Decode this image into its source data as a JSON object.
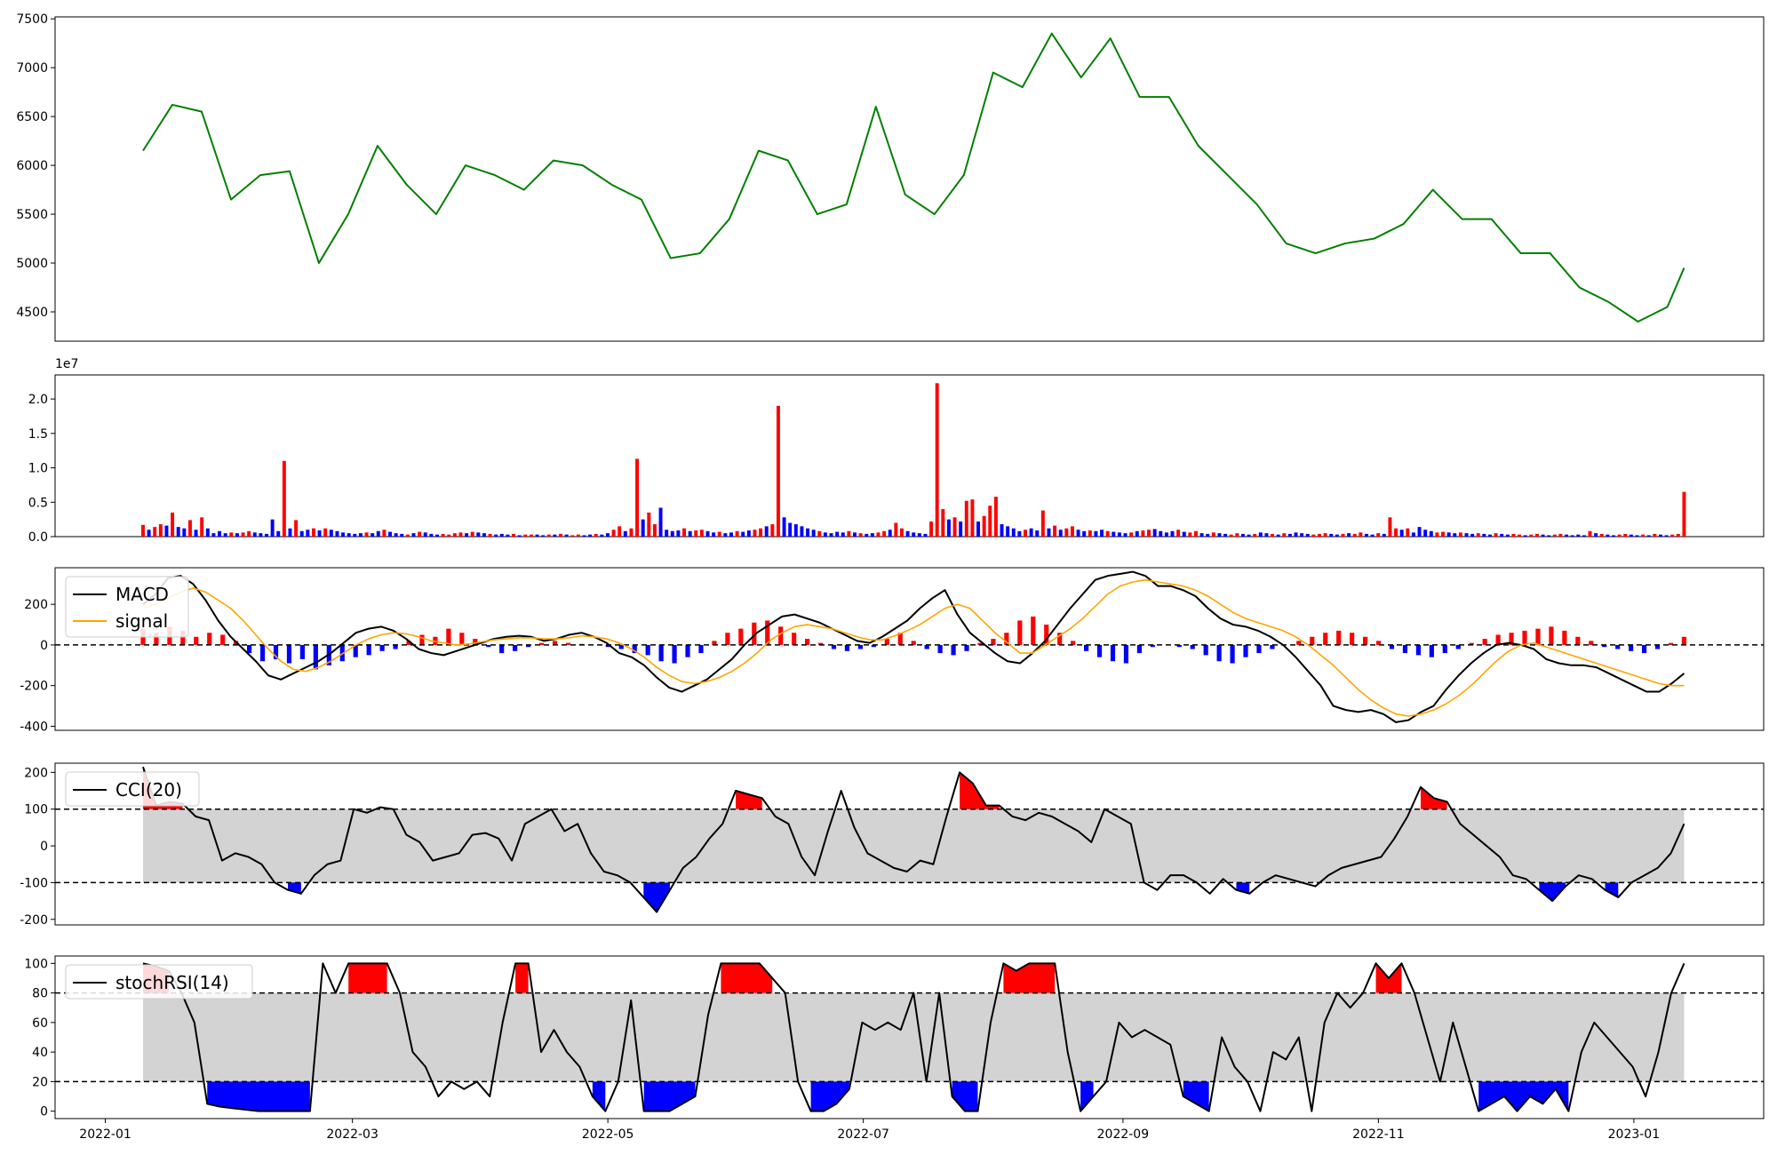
{
  "chart_data": [
    {
      "type": "line",
      "panel": "price",
      "yticks": [
        4500,
        5000,
        5500,
        6000,
        6500,
        7000,
        7500
      ],
      "ylim": [
        4200,
        7520
      ],
      "x_range": [
        "2022-01-10",
        "2023-01-13"
      ],
      "color": "#008000",
      "series": [
        {
          "x": [
            "2022-01-10",
            "2022-01-17",
            "2022-01-24",
            "2022-01-31",
            "2022-02-07",
            "2022-02-14",
            "2022-02-21",
            "2022-02-28",
            "2022-03-07",
            "2022-03-14",
            "2022-03-21",
            "2022-03-28",
            "2022-04-04",
            "2022-04-11",
            "2022-04-18",
            "2022-04-25",
            "2022-05-02",
            "2022-05-09",
            "2022-05-16",
            "2022-05-23",
            "2022-05-30",
            "2022-06-06",
            "2022-06-13",
            "2022-06-20",
            "2022-06-27",
            "2022-07-04",
            "2022-07-11",
            "2022-07-18",
            "2022-07-25",
            "2022-08-01",
            "2022-08-08",
            "2022-08-15",
            "2022-08-22",
            "2022-08-29",
            "2022-09-05",
            "2022-09-12",
            "2022-09-19",
            "2022-09-26",
            "2022-10-03",
            "2022-10-10",
            "2022-10-17",
            "2022-10-24",
            "2022-10-31",
            "2022-11-07",
            "2022-11-14",
            "2022-11-21",
            "2022-11-28",
            "2022-12-05",
            "2022-12-12",
            "2022-12-19",
            "2022-12-26",
            "2023-01-02",
            "2023-01-09",
            "2023-01-13"
          ],
          "values": [
            6150,
            6620,
            6550,
            5650,
            5900,
            5940,
            5000,
            5500,
            6200,
            5800,
            5500,
            6000,
            5900,
            5750,
            6050,
            6000,
            5800,
            5650,
            5050,
            5100,
            5450,
            6150,
            6050,
            5500,
            5600,
            6600,
            5700,
            5500,
            5900,
            6950,
            6800,
            7350,
            6900,
            7300,
            6700,
            6700,
            6200,
            5900,
            5600,
            5200,
            5100,
            5200,
            5250,
            5400,
            5750,
            5450,
            5450,
            5100,
            5100,
            4750,
            4600,
            4400,
            4550,
            4950
          ]
        }
      ]
    },
    {
      "type": "bar",
      "panel": "volume",
      "scale_label": "1e7",
      "yticks": [
        0.0,
        0.5,
        1.0,
        1.5,
        2.0
      ],
      "ylim": [
        0,
        2.35
      ],
      "up_color": "#ff0000",
      "down_color": "#0000ff",
      "values": [
        0.17,
        0.1,
        0.14,
        0.18,
        0.16,
        0.35,
        0.14,
        0.12,
        0.24,
        0.1,
        0.28,
        0.12,
        0.05,
        0.08,
        0.05,
        0.06,
        0.05,
        0.06,
        0.08,
        0.06,
        0.05,
        0.04,
        0.25,
        0.08,
        1.1,
        0.12,
        0.24,
        0.08,
        0.1,
        0.12,
        0.09,
        0.12,
        0.1,
        0.08,
        0.06,
        0.05,
        0.04,
        0.05,
        0.06,
        0.05,
        0.08,
        0.1,
        0.07,
        0.05,
        0.04,
        0.03,
        0.05,
        0.07,
        0.06,
        0.04,
        0.03,
        0.04,
        0.03,
        0.05,
        0.06,
        0.05,
        0.07,
        0.06,
        0.05,
        0.04,
        0.03,
        0.04,
        0.03,
        0.04,
        0.02,
        0.03,
        0.03,
        0.03,
        0.02,
        0.03,
        0.03,
        0.04,
        0.03,
        0.02,
        0.03,
        0.02,
        0.03,
        0.04,
        0.03,
        0.05,
        0.1,
        0.15,
        0.08,
        0.12,
        1.13,
        0.25,
        0.35,
        0.18,
        0.42,
        0.1,
        0.08,
        0.09,
        0.12,
        0.08,
        0.09,
        0.1,
        0.08,
        0.06,
        0.07,
        0.05,
        0.06,
        0.08,
        0.07,
        0.09,
        0.1,
        0.12,
        0.15,
        0.18,
        1.9,
        0.28,
        0.2,
        0.18,
        0.15,
        0.12,
        0.1,
        0.08,
        0.06,
        0.05,
        0.07,
        0.06,
        0.08,
        0.06,
        0.05,
        0.04,
        0.05,
        0.06,
        0.08,
        0.1,
        0.2,
        0.12,
        0.08,
        0.06,
        0.05,
        0.04,
        0.22,
        2.23,
        0.4,
        0.25,
        0.28,
        0.22,
        0.52,
        0.54,
        0.22,
        0.3,
        0.45,
        0.58,
        0.18,
        0.15,
        0.12,
        0.08,
        0.1,
        0.12,
        0.09,
        0.38,
        0.12,
        0.16,
        0.1,
        0.12,
        0.15,
        0.1,
        0.08,
        0.09,
        0.08,
        0.1,
        0.08,
        0.07,
        0.06,
        0.05,
        0.06,
        0.08,
        0.09,
        0.1,
        0.11,
        0.08,
        0.06,
        0.08,
        0.1,
        0.07,
        0.06,
        0.08,
        0.05,
        0.04,
        0.06,
        0.05,
        0.04,
        0.03,
        0.05,
        0.04,
        0.03,
        0.04,
        0.06,
        0.05,
        0.04,
        0.03,
        0.05,
        0.04,
        0.06,
        0.05,
        0.04,
        0.03,
        0.04,
        0.05,
        0.04,
        0.03,
        0.04,
        0.05,
        0.04,
        0.06,
        0.04,
        0.03,
        0.05,
        0.04,
        0.28,
        0.12,
        0.1,
        0.12,
        0.06,
        0.14,
        0.1,
        0.08,
        0.06,
        0.07,
        0.06,
        0.05,
        0.06,
        0.05,
        0.04,
        0.05,
        0.04,
        0.03,
        0.05,
        0.04,
        0.03,
        0.04,
        0.03,
        0.02,
        0.03,
        0.04,
        0.03,
        0.02,
        0.03,
        0.04,
        0.03,
        0.02,
        0.03,
        0.02,
        0.08,
        0.05,
        0.04,
        0.03,
        0.02,
        0.03,
        0.04,
        0.03,
        0.02,
        0.03,
        0.02,
        0.04,
        0.03,
        0.02,
        0.03,
        0.04,
        0.65
      ],
      "down_flags_note": "color follows price direction"
    },
    {
      "type": "line",
      "panel": "macd",
      "yticks": [
        -400,
        -200,
        0,
        200
      ],
      "ylim": [
        -420,
        380
      ],
      "legend": [
        "MACD",
        "signal"
      ],
      "series": [
        {
          "name": "MACD",
          "color": "#000000",
          "values": [
            200,
            250,
            330,
            340,
            300,
            220,
            120,
            40,
            -20,
            -80,
            -150,
            -170,
            -140,
            -110,
            -80,
            -40,
            10,
            60,
            80,
            90,
            70,
            30,
            -20,
            -40,
            -50,
            -30,
            -10,
            10,
            30,
            40,
            45,
            40,
            20,
            30,
            50,
            60,
            40,
            10,
            -40,
            -60,
            -100,
            -160,
            -210,
            -230,
            -200,
            -170,
            -120,
            -70,
            0,
            60,
            100,
            140,
            150,
            130,
            110,
            80,
            50,
            20,
            10,
            40,
            80,
            120,
            180,
            230,
            270,
            150,
            60,
            10,
            -40,
            -80,
            -90,
            -40,
            20,
            100,
            180,
            250,
            320,
            340,
            350,
            360,
            340,
            290,
            290,
            270,
            240,
            180,
            130,
            100,
            90,
            70,
            40,
            0,
            -60,
            -130,
            -200,
            -300,
            -320,
            -330,
            -320,
            -340,
            -380,
            -370,
            -330,
            -300,
            -220,
            -150,
            -90,
            -40,
            0,
            10,
            0,
            -20,
            -70,
            -90,
            -100,
            -100,
            -110,
            -140,
            -170,
            -200,
            -230,
            -230,
            -190,
            -140
          ]
        },
        {
          "name": "signal",
          "color": "#ffa500",
          "values": [
            180,
            200,
            230,
            260,
            280,
            260,
            220,
            180,
            120,
            50,
            -20,
            -80,
            -120,
            -130,
            -110,
            -80,
            -40,
            0,
            30,
            50,
            60,
            55,
            40,
            20,
            10,
            0,
            5,
            15,
            25,
            30,
            35,
            35,
            30,
            30,
            35,
            45,
            40,
            30,
            10,
            -20,
            -60,
            -110,
            -150,
            -180,
            -190,
            -180,
            -160,
            -130,
            -90,
            -40,
            20,
            60,
            90,
            100,
            90,
            80,
            60,
            40,
            25,
            25,
            45,
            70,
            100,
            140,
            180,
            200,
            180,
            120,
            60,
            10,
            -40,
            -40,
            0,
            40,
            80,
            130,
            190,
            250,
            290,
            310,
            320,
            310,
            300,
            290,
            270,
            240,
            200,
            160,
            130,
            110,
            90,
            70,
            40,
            0,
            -50,
            -100,
            -160,
            -220,
            -270,
            -310,
            -340,
            -350,
            -340,
            -320,
            -290,
            -250,
            -200,
            -140,
            -80,
            -30,
            0,
            10,
            -10,
            -30,
            -50,
            -70,
            -90,
            -110,
            -130,
            -150,
            -170,
            -190,
            -200,
            -200
          ]
        }
      ],
      "histogram": {
        "up_color": "#ff0000",
        "down_color": "#0000ff",
        "values": [
          80,
          60,
          90,
          70,
          40,
          60,
          50,
          20,
          -40,
          -80,
          -70,
          -90,
          -70,
          -120,
          -100,
          -80,
          -60,
          -50,
          -30,
          -20,
          20,
          50,
          40,
          80,
          60,
          30,
          -10,
          -40,
          -30,
          -10,
          10,
          20,
          10,
          5,
          0,
          -10,
          -20,
          -40,
          -50,
          -80,
          -90,
          -60,
          -40,
          20,
          60,
          80,
          110,
          120,
          90,
          60,
          30,
          10,
          -20,
          -30,
          -20,
          -10,
          30,
          60,
          20,
          -20,
          -40,
          -50,
          -30,
          10,
          30,
          60,
          120,
          140,
          100,
          60,
          20,
          -30,
          -60,
          -80,
          -90,
          -40,
          -10,
          0,
          -10,
          -20,
          -50,
          -80,
          -90,
          -60,
          -40,
          -20,
          0,
          20,
          40,
          60,
          70,
          60,
          40,
          20,
          -20,
          -40,
          -50,
          -60,
          -40,
          -20,
          10,
          30,
          50,
          60,
          70,
          80,
          90,
          70,
          40,
          20,
          -10,
          -20,
          -30,
          -40,
          -20,
          10,
          40
        ]
      },
      "zero_line": 0
    },
    {
      "type": "area",
      "panel": "cci",
      "yticks": [
        -200,
        -100,
        0,
        100,
        200
      ],
      "ylim": [
        -215,
        225
      ],
      "legend": [
        "CCI(20)"
      ],
      "bands": [
        -100,
        100
      ],
      "band_fill": "#d3d3d3",
      "above_color": "#ff0000",
      "below_color": "#0000ff",
      "values": [
        215,
        110,
        120,
        115,
        80,
        70,
        -40,
        -20,
        -30,
        -50,
        -100,
        -120,
        -130,
        -80,
        -50,
        -40,
        100,
        90,
        105,
        100,
        30,
        10,
        -40,
        -30,
        -20,
        30,
        35,
        20,
        -40,
        60,
        80,
        100,
        40,
        60,
        -20,
        -70,
        -80,
        -100,
        -140,
        -180,
        -120,
        -60,
        -30,
        20,
        60,
        150,
        140,
        130,
        80,
        60,
        -30,
        -80,
        40,
        150,
        50,
        -20,
        -40,
        -60,
        -70,
        -40,
        -50,
        80,
        200,
        170,
        110,
        110,
        80,
        70,
        90,
        80,
        60,
        40,
        10,
        100,
        80,
        60,
        -100,
        -120,
        -80,
        -80,
        -100,
        -130,
        -90,
        -120,
        -130,
        -100,
        -80,
        -90,
        -100,
        -110,
        -80,
        -60,
        -50,
        -40,
        -30,
        20,
        80,
        160,
        130,
        120,
        60,
        30,
        0,
        -30,
        -80,
        -90,
        -120,
        -150,
        -110,
        -80,
        -90,
        -120,
        -140,
        -100,
        -80,
        -60,
        -20,
        60
      ]
    },
    {
      "type": "area",
      "panel": "stochrsi",
      "yticks": [
        0,
        20,
        40,
        60,
        80,
        100
      ],
      "ylim": [
        -5,
        105
      ],
      "legend": [
        "stochRSI(14)"
      ],
      "bands": [
        20,
        80
      ],
      "band_fill": "#d3d3d3",
      "above_color": "#ff0000",
      "below_color": "#0000ff",
      "values": [
        100,
        98,
        95,
        80,
        60,
        5,
        3,
        2,
        1,
        0,
        0,
        0,
        0,
        0,
        100,
        80,
        100,
        100,
        100,
        100,
        80,
        40,
        30,
        10,
        20,
        15,
        20,
        10,
        60,
        100,
        100,
        40,
        55,
        40,
        30,
        10,
        0,
        20,
        75,
        0,
        0,
        0,
        5,
        10,
        65,
        100,
        100,
        100,
        100,
        90,
        80,
        20,
        0,
        0,
        5,
        15,
        60,
        55,
        60,
        55,
        80,
        20,
        80,
        10,
        0,
        0,
        60,
        100,
        95,
        100,
        100,
        100,
        40,
        0,
        10,
        20,
        60,
        50,
        55,
        50,
        45,
        10,
        5,
        0,
        50,
        30,
        20,
        0,
        40,
        35,
        50,
        0,
        60,
        80,
        70,
        80,
        100,
        90,
        100,
        80,
        50,
        20,
        60,
        30,
        0,
        5,
        10,
        0,
        10,
        5,
        15,
        0,
        40,
        60,
        50,
        40,
        30,
        10,
        40,
        80,
        100
      ]
    }
  ],
  "x_axis": {
    "ticks": [
      "2022-01",
      "2022-03",
      "2022-05",
      "2022-07",
      "2022-09",
      "2022-11",
      "2023-01"
    ],
    "range": [
      "2021-12-20",
      "2023-02-01"
    ]
  },
  "legend_labels": {
    "macd": "MACD",
    "signal": "signal",
    "cci": "CCI(20)",
    "stochrsi": "stochRSI(14)"
  },
  "volume_scale": "1e7"
}
